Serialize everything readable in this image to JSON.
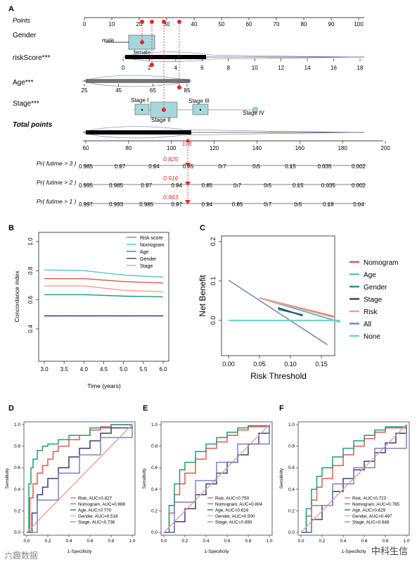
{
  "panelA": {
    "letter": "A",
    "rows": {
      "points": "Points",
      "gender": "Gender",
      "risk": "riskScore***",
      "age": "Age***",
      "stage": "Stage***",
      "total": "Total points"
    },
    "points_ticks": [
      "0",
      "10",
      "20",
      "30",
      "40",
      "50",
      "60",
      "70",
      "80",
      "90",
      "100"
    ],
    "gender_labels": {
      "male": "male",
      "female": "female"
    },
    "risk_ticks": [
      "0",
      "2",
      "4",
      "6",
      "8",
      "10",
      "12",
      "14",
      "16",
      "18"
    ],
    "age_ticks": [
      "25",
      "45",
      "65",
      "85"
    ],
    "stage_labels": {
      "s1": "Stage I",
      "s2": "Stage II",
      "s3": "Stage III",
      "s4": "Stage IV"
    },
    "total_ticks": [
      "60",
      "80",
      "100",
      "120",
      "140",
      "160",
      "180",
      "200"
    ],
    "total_value": "108",
    "prob_rows": [
      {
        "label": "Pr( futime > 3 )",
        "ticks": [
          "0.985",
          "0.97",
          "0.94",
          "0.85",
          "0.7",
          "0.5",
          "0.15",
          "0.035",
          "0.002"
        ],
        "value": "0.825"
      },
      {
        "label": "Pr( futime > 2 )",
        "ticks": [
          "0.995",
          "0.985",
          "0.97",
          "0.94",
          "0.85",
          "0.7",
          "0.5",
          "0.15",
          "0.035",
          "0.002"
        ],
        "value": "0.916"
      },
      {
        "label": "Pr( futime > 1 )",
        "ticks": [
          "0.997",
          "0.993",
          "0.985",
          "0.97",
          "0.94",
          "0.85",
          "0.7",
          "0.5",
          "0.18",
          "0.04"
        ],
        "value": "0.963"
      }
    ]
  },
  "chart_data": [
    {
      "panel": "B",
      "type": "line",
      "xlabel": "Time (years)",
      "ylabel": "Concordance index",
      "xlim": [
        3.0,
        6.0
      ],
      "ylim": [
        0.4,
        1.0
      ],
      "x_ticks": [
        "3.0",
        "3.5",
        "4.0",
        "4.5",
        "5.0",
        "5.5",
        "6.0"
      ],
      "y_ticks": [
        "0.4",
        "0.6",
        "0.8",
        "1.0"
      ],
      "x": [
        3.0,
        4.0,
        5.0,
        6.0
      ],
      "series": [
        {
          "name": "Risk score",
          "color": "#e05a4a",
          "values": [
            0.745,
            0.745,
            0.725,
            0.715
          ]
        },
        {
          "name": "Nomogram",
          "color": "#5cc0cf",
          "values": [
            0.805,
            0.8,
            0.77,
            0.755
          ]
        },
        {
          "name": "Age",
          "color": "#239a7c",
          "values": [
            0.635,
            0.635,
            0.625,
            0.62
          ]
        },
        {
          "name": "Gender",
          "color": "#3a3f78",
          "values": [
            0.49,
            0.49,
            0.49,
            0.49
          ]
        },
        {
          "name": "Stage",
          "color": "#f0a08c",
          "values": [
            0.695,
            0.695,
            0.665,
            0.655
          ]
        }
      ]
    },
    {
      "panel": "C",
      "type": "line",
      "xlabel": "Risk Threshold",
      "ylabel": "Net Benefit",
      "xlim": [
        0.0,
        0.18
      ],
      "ylim": [
        -0.05,
        0.2
      ],
      "x_ticks": [
        "0.00",
        "0.05",
        "0.10",
        "0.15"
      ],
      "y_ticks": [
        "0.0",
        "0.1",
        "0.2"
      ],
      "series": [
        {
          "name": "Nomogram",
          "color": "#e05a4a",
          "x": [
            0.05,
            0.17
          ],
          "values": [
            0.057,
            0.01
          ]
        },
        {
          "name": "Age",
          "color": "#5cc0cf",
          "x": [
            0.05,
            0.18
          ],
          "values": [
            0.057,
            -0.004
          ]
        },
        {
          "name": "Gender",
          "color": "#239a7c",
          "x": [
            0.08,
            0.12
          ],
          "values": [
            0.028,
            0.014
          ]
        },
        {
          "name": "Stage",
          "color": "#3a3f78",
          "x": [
            0.08,
            0.12
          ],
          "values": [
            0.032,
            0.012
          ]
        },
        {
          "name": "Risk",
          "color": "#f0a08c",
          "x": [
            0.05,
            0.17
          ],
          "values": [
            0.057,
            0.008
          ]
        },
        {
          "name": "All",
          "color": "#7a86c0",
          "x": [
            0.0,
            0.16
          ],
          "values": [
            0.102,
            -0.062
          ]
        },
        {
          "name": "None",
          "color": "#6ad7c0",
          "x": [
            0.0,
            0.18
          ],
          "values": [
            0.0,
            0.0
          ]
        }
      ]
    },
    {
      "panel": "D",
      "type": "line",
      "xlabel": "1-Specificity",
      "ylabel": "Sensitivity",
      "xlim": [
        0,
        1
      ],
      "ylim": [
        0,
        1
      ],
      "ticks": [
        "0.0",
        "0.2",
        "0.4",
        "0.6",
        "0.8",
        "1.0"
      ],
      "series": [
        {
          "name": "Risk, AUC=0.827",
          "color": "#e05a4a",
          "x": [
            0,
            0.03,
            0.06,
            0.1,
            0.15,
            0.2,
            0.25,
            0.3,
            0.4,
            0.5,
            0.6,
            0.7,
            0.8,
            1
          ],
          "values": [
            0,
            0.32,
            0.45,
            0.55,
            0.62,
            0.68,
            0.75,
            0.8,
            0.86,
            0.9,
            0.95,
            0.98,
            1,
            1
          ]
        },
        {
          "name": "Nomogram, AUC=0.888",
          "color": "#239a7c",
          "x": [
            0,
            0.02,
            0.04,
            0.06,
            0.1,
            0.15,
            0.2,
            0.3,
            0.4,
            0.6,
            0.8,
            1
          ],
          "values": [
            0,
            0.45,
            0.6,
            0.68,
            0.76,
            0.8,
            0.82,
            0.86,
            0.9,
            0.97,
            1,
            1
          ]
        },
        {
          "name": "Age, AUC=0.770",
          "color": "#3a3f78",
          "x": [
            0,
            0.05,
            0.1,
            0.15,
            0.2,
            0.3,
            0.4,
            0.5,
            0.6,
            0.7,
            0.8,
            1
          ],
          "values": [
            0,
            0.18,
            0.35,
            0.42,
            0.5,
            0.6,
            0.7,
            0.78,
            0.85,
            0.92,
            0.97,
            1
          ]
        },
        {
          "name": "Gender, AUC=0.518",
          "color": "#f0a08c",
          "x": [
            0,
            1
          ],
          "values": [
            0,
            1
          ]
        },
        {
          "name": "Stage, AUC=0.736",
          "color": "#7a86c0",
          "x": [
            0,
            0.1,
            0.3,
            0.5,
            0.7,
            1
          ],
          "values": [
            0,
            0.3,
            0.55,
            0.72,
            0.88,
            1
          ]
        }
      ]
    },
    {
      "panel": "E",
      "type": "line",
      "xlabel": "1-Specificity",
      "ylabel": "Sensitivity",
      "xlim": [
        0,
        1
      ],
      "ylim": [
        0,
        1
      ],
      "ticks": [
        "0.0",
        "0.2",
        "0.4",
        "0.6",
        "0.8",
        "1.0"
      ],
      "series": [
        {
          "name": "Risk, AUC=0.750",
          "color": "#e05a4a",
          "x": [
            0,
            0.05,
            0.1,
            0.15,
            0.2,
            0.3,
            0.4,
            0.5,
            0.6,
            0.7,
            0.8,
            1
          ],
          "values": [
            0,
            0.18,
            0.35,
            0.45,
            0.55,
            0.68,
            0.78,
            0.84,
            0.9,
            0.95,
            0.98,
            1
          ]
        },
        {
          "name": "Nomogram, AUC=0.804",
          "color": "#239a7c",
          "x": [
            0,
            0.05,
            0.1,
            0.15,
            0.2,
            0.3,
            0.4,
            0.5,
            0.6,
            0.7,
            0.8,
            1
          ],
          "values": [
            0,
            0.25,
            0.45,
            0.58,
            0.65,
            0.75,
            0.82,
            0.88,
            0.93,
            0.97,
            0.99,
            1
          ]
        },
        {
          "name": "Age, AUC=0.624",
          "color": "#3a3f78",
          "x": [
            0,
            0.1,
            0.2,
            0.3,
            0.4,
            0.5,
            0.6,
            0.7,
            0.8,
            0.9,
            1
          ],
          "values": [
            0,
            0.1,
            0.22,
            0.35,
            0.45,
            0.55,
            0.65,
            0.72,
            0.82,
            0.92,
            1
          ]
        },
        {
          "name": "Gender, AUC=0.500",
          "color": "#f0a08c",
          "x": [
            0,
            1
          ],
          "values": [
            0,
            1
          ]
        },
        {
          "name": "Stage, AUC=0.690",
          "color": "#7a86c0",
          "x": [
            0,
            0.1,
            0.3,
            0.5,
            0.7,
            1
          ],
          "values": [
            0,
            0.28,
            0.48,
            0.65,
            0.82,
            1
          ]
        }
      ]
    },
    {
      "panel": "F",
      "type": "line",
      "xlabel": "1-Specificity",
      "ylabel": "Sensitivity",
      "xlim": [
        0,
        1
      ],
      "ylim": [
        0,
        1
      ],
      "ticks": [
        "0.0",
        "0.2",
        "0.4",
        "0.6",
        "0.8",
        "1.0"
      ],
      "series": [
        {
          "name": "Risk, AUC=0.723",
          "color": "#e05a4a",
          "x": [
            0,
            0.05,
            0.1,
            0.15,
            0.2,
            0.3,
            0.4,
            0.5,
            0.6,
            0.7,
            0.8,
            1
          ],
          "values": [
            0,
            0.15,
            0.3,
            0.42,
            0.5,
            0.62,
            0.72,
            0.8,
            0.87,
            0.93,
            0.97,
            1
          ]
        },
        {
          "name": "Nomogram, AUC=0.765",
          "color": "#239a7c",
          "x": [
            0,
            0.05,
            0.1,
            0.15,
            0.2,
            0.3,
            0.4,
            0.5,
            0.6,
            0.7,
            0.8,
            1
          ],
          "values": [
            0,
            0.22,
            0.4,
            0.52,
            0.6,
            0.7,
            0.78,
            0.85,
            0.9,
            0.95,
            0.98,
            1
          ]
        },
        {
          "name": "Age, AUC=0.629",
          "color": "#3a3f78",
          "x": [
            0,
            0.1,
            0.2,
            0.3,
            0.4,
            0.5,
            0.6,
            0.7,
            0.8,
            0.9,
            1
          ],
          "values": [
            0,
            0.12,
            0.25,
            0.38,
            0.5,
            0.58,
            0.66,
            0.74,
            0.83,
            0.92,
            1
          ]
        },
        {
          "name": "Gender, AUC=0.497",
          "color": "#f0a08c",
          "x": [
            0,
            1
          ],
          "values": [
            0,
            1
          ]
        },
        {
          "name": "Stage, AUC=0.648",
          "color": "#7a86c0",
          "x": [
            0,
            0.1,
            0.3,
            0.5,
            0.7,
            1
          ],
          "values": [
            0,
            0.25,
            0.45,
            0.6,
            0.78,
            1
          ]
        }
      ]
    }
  ],
  "watermarks": {
    "left": "六趣数据",
    "right": "中科生信"
  }
}
